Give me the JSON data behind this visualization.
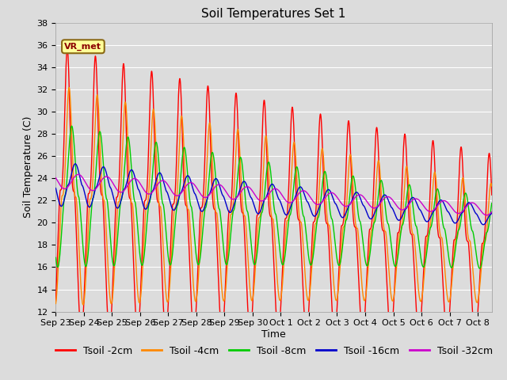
{
  "title": "Soil Temperatures Set 1",
  "xlabel": "Time",
  "ylabel": "Soil Temperature (C)",
  "ylim": [
    12,
    38
  ],
  "yticks": [
    12,
    14,
    16,
    18,
    20,
    22,
    24,
    26,
    28,
    30,
    32,
    34,
    36,
    38
  ],
  "background_color": "#dcdcdc",
  "plot_bg_color": "#dcdcdc",
  "grid_color": "#ffffff",
  "annotation_text": "VR_met",
  "colors": {
    "Tsoil -2cm": "#ff0000",
    "Tsoil -4cm": "#ff8800",
    "Tsoil -8cm": "#00cc00",
    "Tsoil -16cm": "#0000cc",
    "Tsoil -32cm": "#cc00cc"
  },
  "x_tick_labels": [
    "Sep 23",
    "Sep 24",
    "Sep 25",
    "Sep 26",
    "Sep 27",
    "Sep 28",
    "Sep 29",
    "Sep 30",
    "Oct 1",
    "Oct 2",
    "Oct 3",
    "Oct 4",
    "Oct 5",
    "Oct 6",
    "Oct 7",
    "Oct 8"
  ],
  "n_days": 15.5,
  "title_fontsize": 11,
  "label_fontsize": 9,
  "tick_fontsize": 8,
  "legend_fontsize": 9
}
